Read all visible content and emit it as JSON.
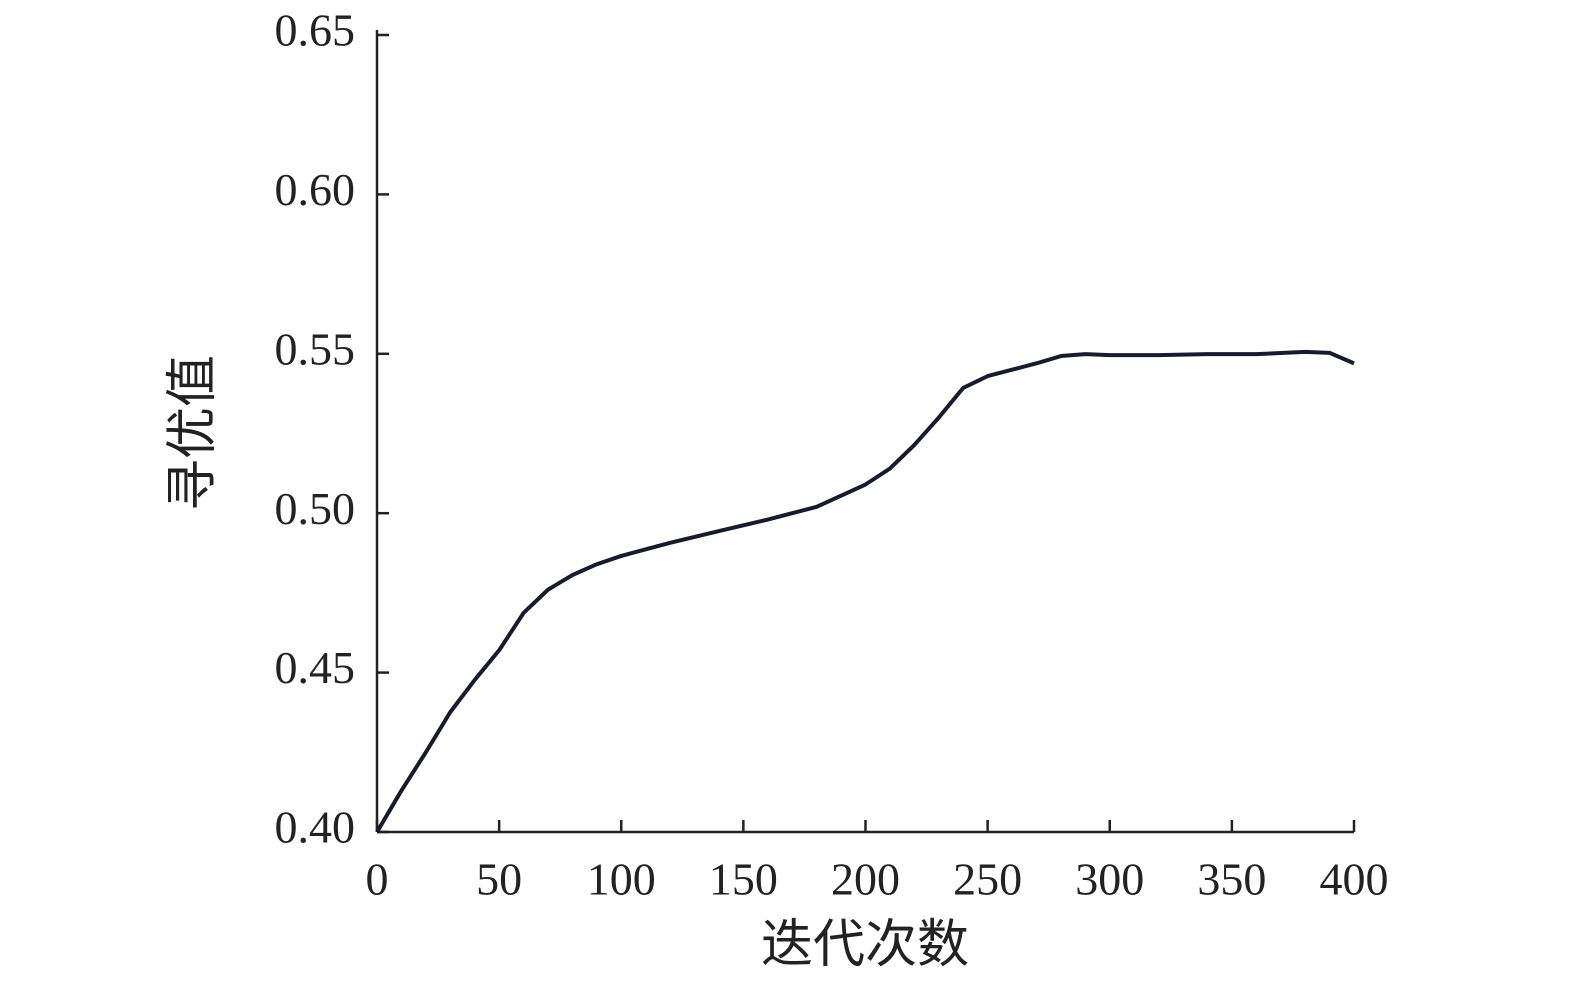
{
  "chart_data": {
    "type": "line",
    "x_label": "迭代次数",
    "y_label": "寻优值",
    "series": [
      {
        "color": "#1a1a2e",
        "x": [
          0,
          10,
          20,
          30,
          40,
          50,
          60,
          70,
          80,
          90,
          100,
          120,
          140,
          160,
          180,
          200,
          210,
          220,
          230,
          240,
          250,
          260,
          270,
          280,
          290,
          300,
          320,
          340,
          360,
          380,
          390,
          400
        ],
        "values": [
          0.4,
          0.413,
          0.425,
          0.4376,
          0.4477,
          0.457,
          0.4687,
          0.476,
          0.4806,
          0.484,
          0.4866,
          0.4907,
          0.4944,
          0.498,
          0.502,
          0.509,
          0.514,
          0.5214,
          0.53,
          0.5393,
          0.543,
          0.545,
          0.547,
          0.5493,
          0.5499,
          0.5496,
          0.5496,
          0.5499,
          0.5499,
          0.5506,
          0.5503,
          0.547
        ]
      }
    ],
    "xlim": [
      0,
      400
    ],
    "xticks": [
      0,
      50,
      100,
      150,
      200,
      250,
      300,
      350,
      400
    ],
    "ylim": [
      0.4,
      0.65
    ],
    "yticks": [
      {
        "value": 0.4,
        "label": "0.40"
      },
      0.45,
      {
        "value": 0.5,
        "label": "0.50"
      },
      0.55,
      {
        "value": 0.6,
        "label": "0.60"
      },
      0.65
    ],
    "grid": false
  }
}
